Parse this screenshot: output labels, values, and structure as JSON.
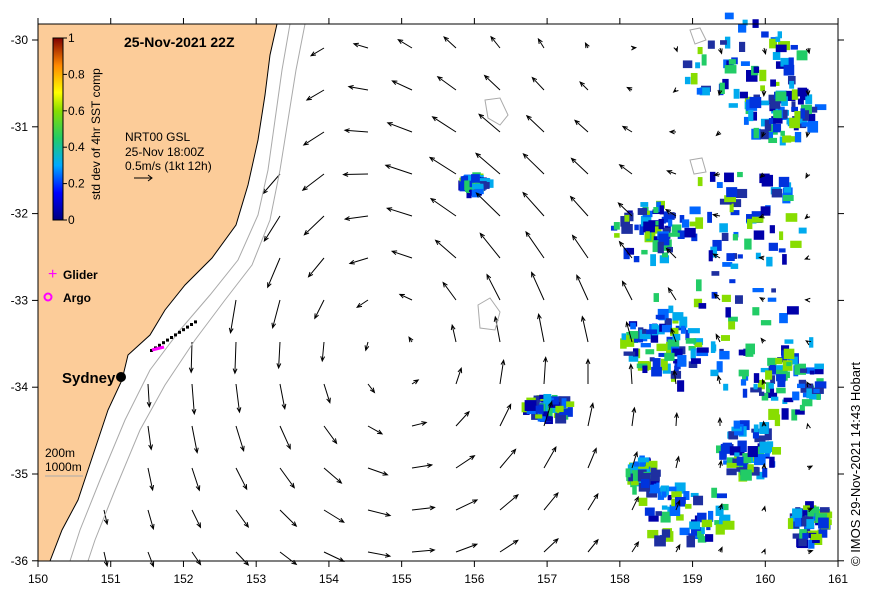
{
  "title": "25-Nov-2021 22Z",
  "colorbar": {
    "label": "std dev of 4hr SST comp",
    "ticks": [
      "0",
      "0.2",
      "0.4",
      "0.6",
      "0.8",
      "1"
    ]
  },
  "vector_info": {
    "line1": "NRT00 GSL",
    "line2": "25-Nov 18:00Z",
    "line3": "0.5m/s (1kt 12h)"
  },
  "legend": {
    "glider": "Glider",
    "argo": "Argo"
  },
  "place": "Sydney",
  "isobaths": {
    "a": "200m",
    "b": "1000m"
  },
  "x_ticks": [
    "150",
    "151",
    "152",
    "153",
    "154",
    "155",
    "156",
    "157",
    "158",
    "159",
    "160",
    "161"
  ],
  "y_ticks": [
    "-30",
    "-31",
    "-32",
    "-33",
    "-34",
    "-35",
    "-36"
  ],
  "credit": "© IMOS 29-Nov-2021 14:43 Hobart",
  "colors": {
    "land": "#fccc99",
    "glider": "#ff00ff"
  }
}
